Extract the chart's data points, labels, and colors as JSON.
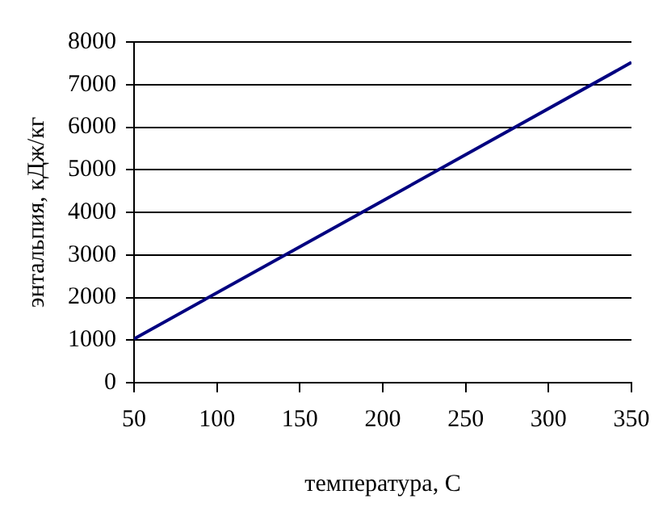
{
  "chart_data": {
    "type": "line",
    "xlabel": "температура, С",
    "ylabel": "энтальпия, кДж/кг",
    "x": [
      50,
      200,
      350
    ],
    "series": [
      {
        "color": "#000080",
        "values": [
          1030,
          4270,
          7520
        ]
      }
    ],
    "xlim": [
      50,
      350
    ],
    "xticks": [
      50,
      100,
      150,
      200,
      250,
      300,
      350
    ],
    "ylim": [
      0,
      8000
    ],
    "yticks": [
      0,
      1000,
      2000,
      3000,
      4000,
      5000,
      6000,
      7000,
      8000
    ],
    "grid": "y",
    "legend": false,
    "marker": "none",
    "line_style": "solid"
  }
}
